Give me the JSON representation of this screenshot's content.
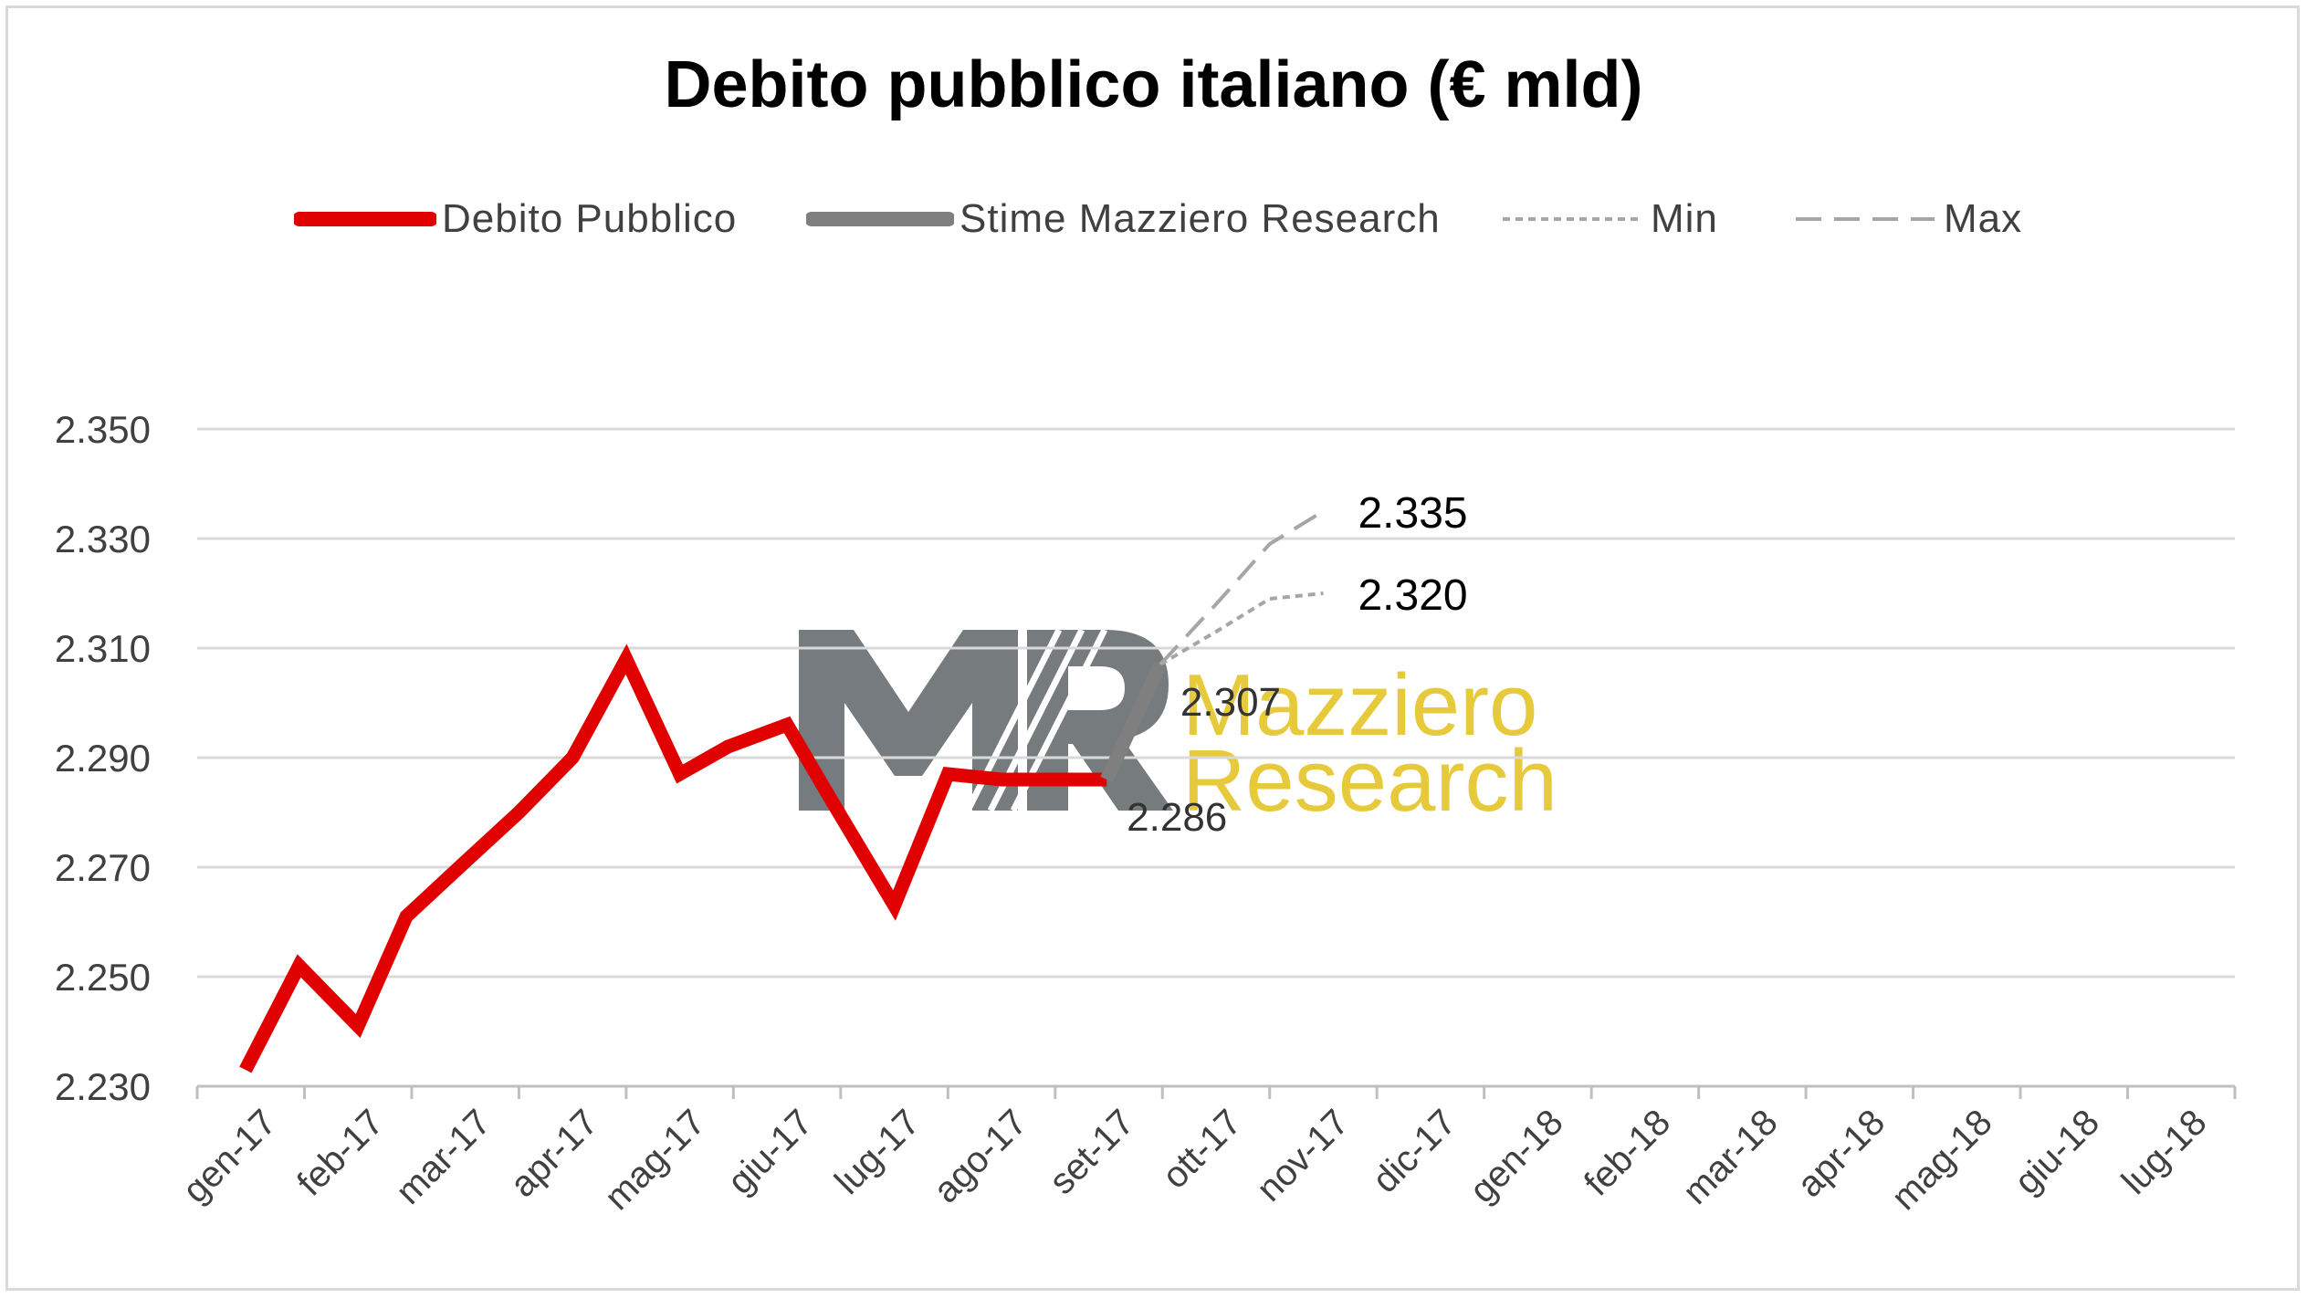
{
  "chart_data": {
    "type": "line",
    "title": "Debito pubblico italiano (€ mld)",
    "xlabel": "",
    "ylabel": "",
    "ylim": [
      2230,
      2350
    ],
    "yticks": [
      2230,
      2250,
      2270,
      2290,
      2310,
      2330,
      2350
    ],
    "ytick_labels": [
      "2.230",
      "2.250",
      "2.270",
      "2.290",
      "2.310",
      "2.330",
      "2.350"
    ],
    "categories": [
      "gen-17",
      "feb-17",
      "mar-17",
      "apr-17",
      "mag-17",
      "giu-17",
      "lug-17",
      "ago-17",
      "set-17",
      "ott-17",
      "nov-17",
      "dic-17",
      "gen-18",
      "feb-18",
      "mar-18",
      "apr-18",
      "mag-18",
      "giu-18",
      "lug-18"
    ],
    "grid": true,
    "legend_position": "top",
    "series": [
      {
        "name": "Debito Pubblico",
        "color": "#e00000",
        "style": "solid",
        "x": [
          -0.05,
          0.45,
          1.0,
          1.45,
          2.0,
          2.5,
          3.0,
          3.5,
          4.0,
          4.45,
          5.0,
          5.45,
          6.0,
          6.5,
          7.0,
          7.5,
          7.98
        ],
        "values": [
          2233,
          2252,
          2241,
          2261,
          2271,
          2280,
          2290,
          2308,
          2287,
          2292,
          2296,
          2281,
          2263,
          2287,
          2286,
          2286,
          2286
        ]
      },
      {
        "name": "Stime Mazziero Research",
        "color": "#7f7f7f",
        "style": "solid",
        "x": [
          7.98,
          8.48
        ],
        "values": [
          2286,
          2307
        ]
      },
      {
        "name": "Min",
        "color": "#a6a6a6",
        "style": "dotted",
        "x": [
          8.48,
          9.0,
          9.5,
          10.0
        ],
        "values": [
          2307,
          2313,
          2319,
          2320
        ]
      },
      {
        "name": "Max",
        "color": "#a6a6a6",
        "style": "dashed",
        "x": [
          8.48,
          9.0,
          9.5,
          10.0
        ],
        "values": [
          2307,
          2318,
          2329,
          2335
        ]
      }
    ],
    "annotations": [
      {
        "text": "2.286",
        "x": 7.98,
        "y": 2286,
        "size": "small"
      },
      {
        "text": "2.307",
        "x": 8.48,
        "y": 2307,
        "size": "small"
      },
      {
        "text": "2.335",
        "x": 10.0,
        "y": 2335,
        "size": "big"
      },
      {
        "text": "2.320",
        "x": 10.0,
        "y": 2320,
        "size": "big"
      }
    ],
    "watermark": {
      "monogram": "MR",
      "line1": "Mazziero",
      "line2": "Research"
    }
  },
  "colors": {
    "accent": "#e00000",
    "estimate": "#7f7f7f",
    "range": "#a6a6a6",
    "watermark_gold": "#e6c832",
    "watermark_gray": "#6f7478"
  }
}
